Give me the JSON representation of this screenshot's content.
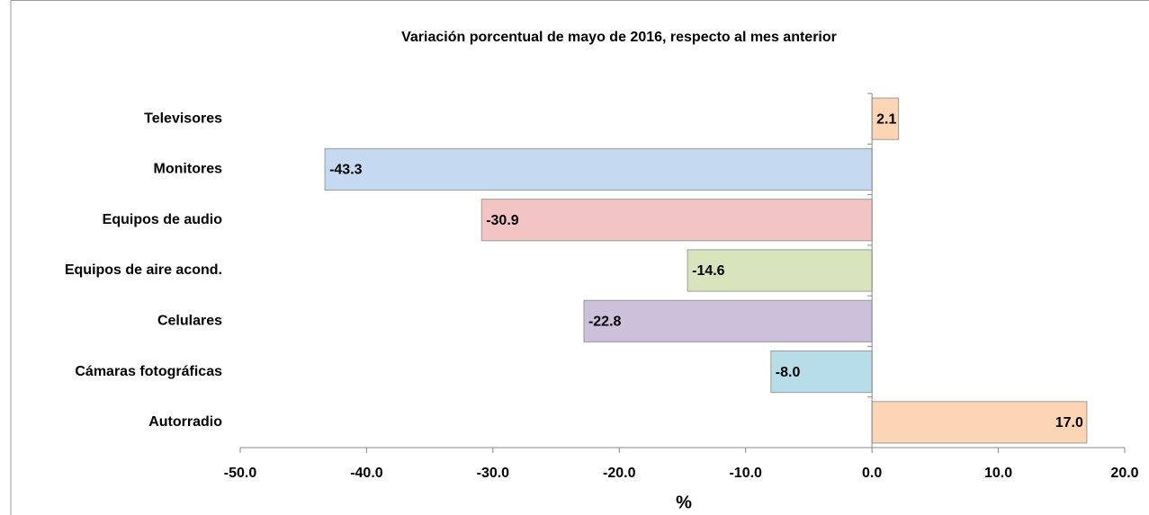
{
  "chart_data": {
    "type": "barh",
    "title": "Variación porcentual de mayo de 2016, respecto al mes anterior",
    "xlabel": "%",
    "categories": [
      "Televisores",
      "Monitores",
      "Equipos de audio",
      "Equipos de aire acond.",
      "Celulares",
      "Cámaras fotográficas",
      "Autorradio"
    ],
    "values": [
      2.1,
      -43.3,
      -30.9,
      -14.6,
      -22.8,
      -8.0,
      17.0
    ],
    "value_labels": [
      "2.1",
      "-43.3",
      "-30.9",
      "-14.6",
      "-22.8",
      "-8.0",
      "17.0"
    ],
    "colors": [
      "#fcd5b4",
      "#c5d9f1",
      "#f2c4c4",
      "#d8e4bc",
      "#ccc0da",
      "#b7dee8",
      "#fcd5b4"
    ],
    "xlim": [
      -50,
      20
    ],
    "xticks": [
      {
        "value": -50,
        "label": "-50.0"
      },
      {
        "value": -40,
        "label": "-40.0"
      },
      {
        "value": -30,
        "label": "-30.0"
      },
      {
        "value": -20,
        "label": "-20.0"
      },
      {
        "value": -10,
        "label": "-10.0"
      },
      {
        "value": 0,
        "label": "0.0"
      },
      {
        "value": 10,
        "label": "10.0"
      },
      {
        "value": 20,
        "label": "20.0"
      }
    ],
    "grid": false
  }
}
